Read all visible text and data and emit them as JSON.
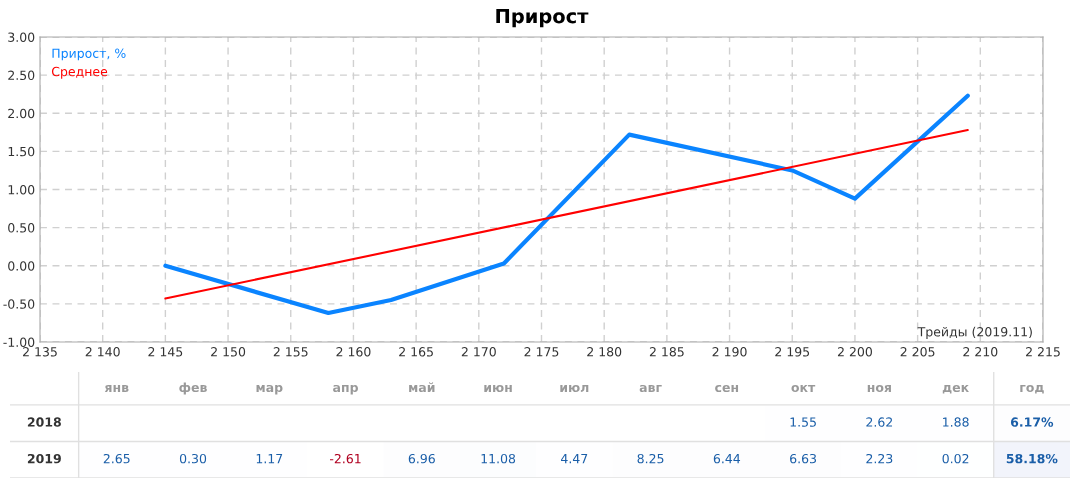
{
  "chart_data": [
    {
      "type": "line",
      "title": "Прирост",
      "xlabel": "Трейды (2019.11)",
      "series": [
        {
          "name": "Прирост, %",
          "color": "#0a84ff",
          "x": [
            2145,
            2158,
            2163,
            2172,
            2182,
            2195,
            2200,
            2209
          ],
          "values": [
            0.0,
            -0.62,
            -0.45,
            0.03,
            1.72,
            1.25,
            0.88,
            2.23
          ]
        },
        {
          "name": "Среднее",
          "color": "#ff0000",
          "x": [
            2145,
            2209
          ],
          "values": [
            -0.43,
            1.78
          ]
        }
      ],
      "xlim": [
        2135,
        2215
      ],
      "xticks": [
        {
          "value": 2135,
          "label": "2 135"
        },
        {
          "value": 2140,
          "label": "2 140"
        },
        {
          "value": 2145,
          "label": "2 145"
        },
        {
          "value": 2150,
          "label": "2 150"
        },
        {
          "value": 2155,
          "label": "2 155"
        },
        {
          "value": 2160,
          "label": "2 160"
        },
        {
          "value": 2165,
          "label": "2 165"
        },
        {
          "value": 2170,
          "label": "2 170"
        },
        {
          "value": 2175,
          "label": "2 175"
        },
        {
          "value": 2180,
          "label": "2 180"
        },
        {
          "value": 2185,
          "label": "2 185"
        },
        {
          "value": 2190,
          "label": "2 190"
        },
        {
          "value": 2195,
          "label": "2 195"
        },
        {
          "value": 2200,
          "label": "2 200"
        },
        {
          "value": 2205,
          "label": "2 205"
        },
        {
          "value": 2210,
          "label": "2 210"
        },
        {
          "value": 2215,
          "label": "2 215"
        }
      ],
      "ylim": [
        -1.0,
        3.0
      ],
      "yticks": [
        {
          "value": -1.0,
          "label": "-1.00"
        },
        {
          "value": -0.5,
          "label": "-0.50"
        },
        {
          "value": 0.0,
          "label": "0.00"
        },
        {
          "value": 0.5,
          "label": "0.50"
        },
        {
          "value": 1.0,
          "label": "1.00"
        },
        {
          "value": 1.5,
          "label": "1.50"
        },
        {
          "value": 2.0,
          "label": "2.00"
        },
        {
          "value": 2.5,
          "label": "2.50"
        },
        {
          "value": 3.0,
          "label": "3.00"
        }
      ],
      "grid": true,
      "legend": "top left",
      "line_style": "solid",
      "marker": "none"
    },
    {
      "type": "heatmap",
      "categories": [
        "янв",
        "фев",
        "мар",
        "апр",
        "май",
        "июн",
        "июл",
        "авг",
        "сен",
        "окт",
        "ноя",
        "дек",
        "год"
      ],
      "y_categories": [
        "2018",
        "2019"
      ],
      "cells": [
        [
          null,
          null,
          null,
          null,
          null,
          null,
          null,
          null,
          null,
          1.55,
          2.62,
          1.88,
          6.17
        ],
        [
          2.65,
          0.3,
          1.17,
          -2.61,
          6.96,
          11.08,
          4.47,
          8.25,
          6.44,
          6.63,
          2.23,
          0.02,
          58.18
        ]
      ],
      "cell_labels": [
        [
          null,
          null,
          null,
          null,
          null,
          null,
          null,
          null,
          null,
          "1.55",
          "2.62",
          "1.88",
          "6.17%"
        ],
        [
          "2.65",
          "0.30",
          "1.17",
          "-2.61",
          "6.96",
          "11.08",
          "4.47",
          "8.25",
          "6.44",
          "6.63",
          "2.23",
          "0.02",
          "58.18%"
        ]
      ]
    }
  ]
}
